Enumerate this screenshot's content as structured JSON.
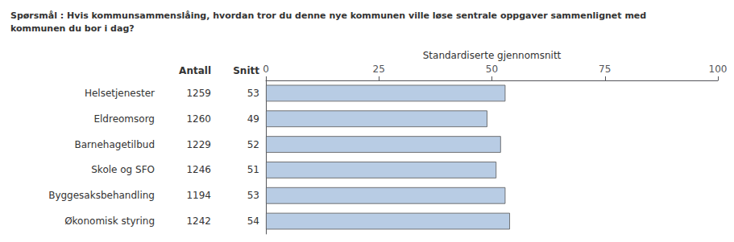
{
  "chart_data": {
    "type": "bar",
    "orientation": "horizontal",
    "title": "Spørsmål : Hvis kommunsammenslåing, hvordan tror du denne nye kommunen ville løse sentrale oppgaver sammenlignet med\nkommunen du bor i dag?",
    "xlabel": "Standardiserte gjennomsnitt",
    "categories": [
      "Helsetjenester",
      "Eldreomsorg",
      "Barnehagetilbud",
      "Skole og SFO",
      "Byggesaksbehandling",
      "Økonomisk styring"
    ],
    "counts_header": "Antall",
    "counts": [
      1259,
      1260,
      1229,
      1246,
      1194,
      1242
    ],
    "values_header": "Snitt",
    "values": [
      53,
      49,
      52,
      51,
      53,
      54
    ],
    "color": "#b8cce4",
    "xlim": [
      0,
      100
    ],
    "xticks": [
      0,
      25,
      50,
      75,
      100
    ],
    "grid": false
  }
}
